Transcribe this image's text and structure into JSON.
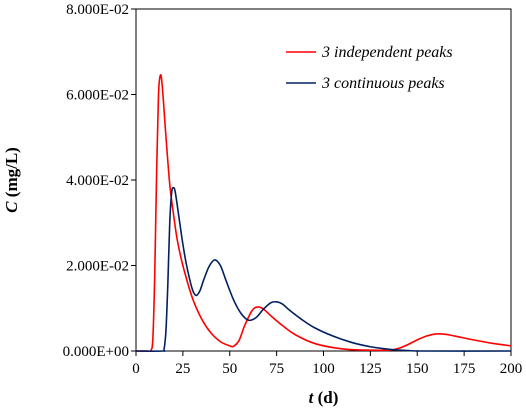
{
  "chart_data": {
    "type": "line",
    "xlabel_var": "t",
    "xlabel_unit": "(d)",
    "ylabel_var": "C",
    "ylabel_unit": "(mg/L)",
    "xlim": [
      0,
      200
    ],
    "ylim": [
      0,
      0.08
    ],
    "x_ticks": [
      0,
      25,
      50,
      75,
      100,
      125,
      150,
      175,
      200
    ],
    "x_tick_labels": [
      "0",
      "25",
      "50",
      "75",
      "100",
      "125",
      "150",
      "175",
      "200"
    ],
    "y_ticks": [
      0,
      0.02,
      0.04,
      0.06,
      0.08
    ],
    "y_tick_labels": [
      "0.000E+00",
      "2.000E-02",
      "4.000E-02",
      "6.000E-02",
      "8.000E-02"
    ],
    "grid": false,
    "legend_position": "top-right",
    "series": [
      {
        "name": "3 independent peaks",
        "color": "#ff0000",
        "points": [
          [
            0,
            0
          ],
          [
            6,
            0
          ],
          [
            8,
            0.0002
          ],
          [
            9,
            0.003
          ],
          [
            10,
            0.018
          ],
          [
            11,
            0.042
          ],
          [
            12,
            0.06
          ],
          [
            13,
            0.0645
          ],
          [
            14,
            0.062
          ],
          [
            16,
            0.05
          ],
          [
            18,
            0.039
          ],
          [
            20,
            0.032
          ],
          [
            22,
            0.026
          ],
          [
            25,
            0.02
          ],
          [
            30,
            0.0125
          ],
          [
            35,
            0.0075
          ],
          [
            40,
            0.0042
          ],
          [
            45,
            0.0022
          ],
          [
            50,
            0.0012
          ],
          [
            52,
            0.0011
          ],
          [
            55,
            0.0025
          ],
          [
            58,
            0.006
          ],
          [
            62,
            0.0095
          ],
          [
            65,
            0.0103
          ],
          [
            68,
            0.0098
          ],
          [
            72,
            0.0082
          ],
          [
            78,
            0.006
          ],
          [
            85,
            0.0038
          ],
          [
            95,
            0.0018
          ],
          [
            105,
            0.0008
          ],
          [
            115,
            0.0003
          ],
          [
            125,
            0.0002
          ],
          [
            135,
            0.0002
          ],
          [
            140,
            0.0006
          ],
          [
            145,
            0.0015
          ],
          [
            150,
            0.0026
          ],
          [
            155,
            0.0035
          ],
          [
            160,
            0.004
          ],
          [
            165,
            0.0039
          ],
          [
            170,
            0.0035
          ],
          [
            180,
            0.0026
          ],
          [
            190,
            0.0018
          ],
          [
            200,
            0.0012
          ]
        ]
      },
      {
        "name": "3 continuous peaks",
        "color": "#002060",
        "points": [
          [
            0,
            0
          ],
          [
            14,
            0
          ],
          [
            15,
            0.0005
          ],
          [
            16,
            0.005
          ],
          [
            17,
            0.016
          ],
          [
            18,
            0.03
          ],
          [
            19,
            0.037
          ],
          [
            20,
            0.0382
          ],
          [
            21,
            0.037
          ],
          [
            23,
            0.031
          ],
          [
            25,
            0.025
          ],
          [
            27,
            0.02
          ],
          [
            30,
            0.0145
          ],
          [
            32,
            0.013
          ],
          [
            34,
            0.014
          ],
          [
            36,
            0.0165
          ],
          [
            39,
            0.0198
          ],
          [
            42,
            0.0213
          ],
          [
            45,
            0.02
          ],
          [
            48,
            0.0165
          ],
          [
            52,
            0.012
          ],
          [
            56,
            0.0088
          ],
          [
            60,
            0.0072
          ],
          [
            64,
            0.0078
          ],
          [
            68,
            0.0098
          ],
          [
            72,
            0.0113
          ],
          [
            75,
            0.0115
          ],
          [
            78,
            0.011
          ],
          [
            82,
            0.0095
          ],
          [
            88,
            0.0075
          ],
          [
            95,
            0.0055
          ],
          [
            105,
            0.0035
          ],
          [
            115,
            0.002
          ],
          [
            125,
            0.001
          ],
          [
            135,
            0.0004
          ],
          [
            145,
            0.0001
          ],
          [
            155,
            0
          ],
          [
            200,
            0
          ]
        ]
      }
    ]
  }
}
